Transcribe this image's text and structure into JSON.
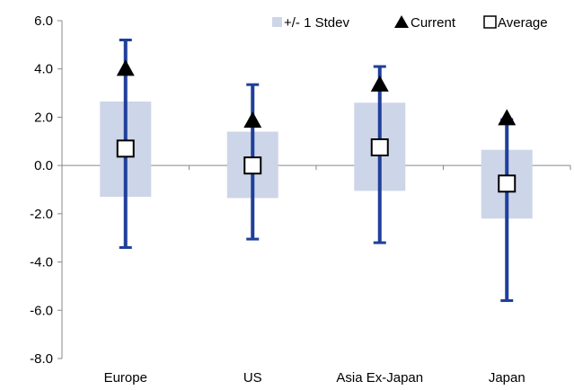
{
  "chart_data": {
    "type": "range-and-error-bar",
    "title": "",
    "xlabel": "",
    "ylabel": "",
    "categories": [
      "Europe",
      "US",
      "Asia Ex-Japan",
      "Japan"
    ],
    "ylim": [
      -8.0,
      6.0
    ],
    "yticks": [
      "6.0",
      "4.0",
      "2.0",
      "0.0",
      "-2.0",
      "-4.0",
      "-6.0",
      "-8.0"
    ],
    "grid": false,
    "legend": {
      "placement": "top-right",
      "entries": [
        {
          "key": "stdev",
          "label": "+/-  1 Stdev"
        },
        {
          "key": "current",
          "label": "Current"
        },
        {
          "key": "average",
          "label": "Average"
        }
      ]
    },
    "series": [
      {
        "name": "+/-  1 Stdev",
        "low": [
          -1.3,
          -1.35,
          -1.05,
          -2.2
        ],
        "high": [
          2.65,
          1.4,
          2.6,
          0.65
        ]
      },
      {
        "name": "Current",
        "values": [
          4.05,
          1.9,
          3.4,
          2.0
        ]
      },
      {
        "name": "Average",
        "values": [
          0.7,
          0.0,
          0.75,
          -0.75
        ]
      }
    ],
    "range_whiskers": {
      "min": [
        -3.4,
        -3.05,
        -3.2,
        -5.6
      ],
      "max": [
        5.2,
        3.35,
        4.1,
        1.9
      ]
    },
    "colors": {
      "stdev_box": "#cdd5e8",
      "whisker": "#1f3f9a",
      "current": "#000000",
      "average": "#000000",
      "axis": "#888888"
    }
  }
}
